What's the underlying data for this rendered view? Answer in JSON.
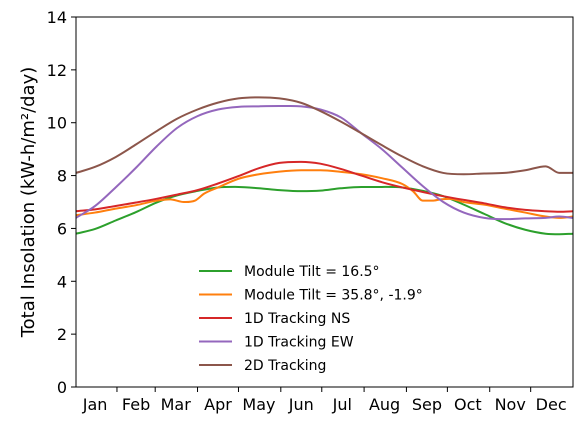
{
  "chart_data": {
    "type": "line",
    "ylabel": "Total Insolation (kW-h/m²/day)",
    "ylim": [
      0,
      14
    ],
    "yticks": [
      0,
      2,
      4,
      6,
      8,
      10,
      12,
      14
    ],
    "xlim": [
      1,
      365
    ],
    "x_tick_positions": [
      31,
      59,
      90,
      120,
      151,
      181,
      212,
      243,
      273,
      304,
      334
    ],
    "month_labels": [
      "Jan",
      "Feb",
      "Mar",
      "Apr",
      "May",
      "Jun",
      "Jul",
      "Aug",
      "Sep",
      "Oct",
      "Nov",
      "Dec"
    ],
    "month_label_positions": [
      15,
      45,
      74,
      105,
      135,
      166,
      196,
      227,
      258,
      288,
      319,
      349
    ],
    "grid": false,
    "legend_placement": "lower-center",
    "series": [
      {
        "name": "Module Tilt = 16.5°",
        "color": "#2ca02c",
        "x": [
          1,
          15,
          30,
          45,
          60,
          75,
          90,
          105,
          120,
          135,
          150,
          166,
          180,
          195,
          210,
          225,
          240,
          255,
          270,
          285,
          300,
          315,
          330,
          345,
          355,
          365
        ],
        "y": [
          5.8,
          5.98,
          6.3,
          6.62,
          6.98,
          7.25,
          7.42,
          7.55,
          7.57,
          7.52,
          7.45,
          7.41,
          7.43,
          7.52,
          7.57,
          7.57,
          7.55,
          7.42,
          7.22,
          6.9,
          6.55,
          6.2,
          5.95,
          5.8,
          5.78,
          5.8
        ]
      },
      {
        "name": "Module Tilt = 35.8°, -1.9°",
        "color": "#ff7f0e",
        "x": [
          1,
          15,
          30,
          45,
          60,
          70,
          80,
          88,
          95,
          105,
          120,
          135,
          150,
          166,
          180,
          195,
          210,
          225,
          240,
          248,
          255,
          262,
          268,
          275,
          285,
          300,
          315,
          330,
          345,
          355,
          365
        ],
        "y": [
          6.5,
          6.6,
          6.75,
          6.88,
          7.05,
          7.1,
          7.0,
          7.05,
          7.32,
          7.55,
          7.88,
          8.05,
          8.15,
          8.2,
          8.2,
          8.14,
          8.05,
          7.9,
          7.68,
          7.4,
          7.05,
          7.05,
          7.1,
          7.12,
          7.0,
          6.9,
          6.75,
          6.6,
          6.45,
          6.4,
          6.45
        ]
      },
      {
        "name": "1D Tracking NS",
        "color": "#d62728",
        "x": [
          1,
          15,
          30,
          45,
          60,
          75,
          90,
          105,
          120,
          135,
          150,
          166,
          180,
          195,
          210,
          225,
          240,
          255,
          270,
          285,
          300,
          315,
          330,
          345,
          355,
          365
        ],
        "y": [
          6.65,
          6.72,
          6.85,
          6.98,
          7.12,
          7.28,
          7.45,
          7.7,
          7.98,
          8.28,
          8.48,
          8.52,
          8.45,
          8.25,
          8.0,
          7.75,
          7.55,
          7.38,
          7.22,
          7.08,
          6.95,
          6.8,
          6.7,
          6.65,
          6.63,
          6.65
        ]
      },
      {
        "name": "1D Tracking EW",
        "color": "#9467bd",
        "x": [
          1,
          15,
          30,
          45,
          60,
          75,
          90,
          105,
          120,
          135,
          150,
          166,
          180,
          195,
          210,
          225,
          240,
          255,
          270,
          285,
          300,
          315,
          330,
          345,
          355,
          365
        ],
        "y": [
          6.4,
          6.85,
          7.55,
          8.3,
          9.1,
          9.8,
          10.25,
          10.5,
          10.6,
          10.62,
          10.63,
          10.62,
          10.5,
          10.2,
          9.6,
          9.0,
          8.3,
          7.6,
          7.0,
          6.6,
          6.4,
          6.35,
          6.38,
          6.4,
          6.45,
          6.4
        ]
      },
      {
        "name": "2D Tracking",
        "color": "#8c564b",
        "x": [
          1,
          15,
          30,
          45,
          60,
          75,
          90,
          105,
          120,
          135,
          150,
          166,
          180,
          195,
          210,
          225,
          240,
          255,
          270,
          285,
          300,
          315,
          330,
          345,
          355,
          365
        ],
        "y": [
          8.1,
          8.33,
          8.7,
          9.18,
          9.68,
          10.15,
          10.5,
          10.76,
          10.92,
          10.96,
          10.92,
          10.75,
          10.44,
          10.04,
          9.6,
          9.15,
          8.72,
          8.35,
          8.1,
          8.05,
          8.08,
          8.1,
          8.2,
          8.35,
          8.1,
          8.1
        ]
      }
    ]
  }
}
